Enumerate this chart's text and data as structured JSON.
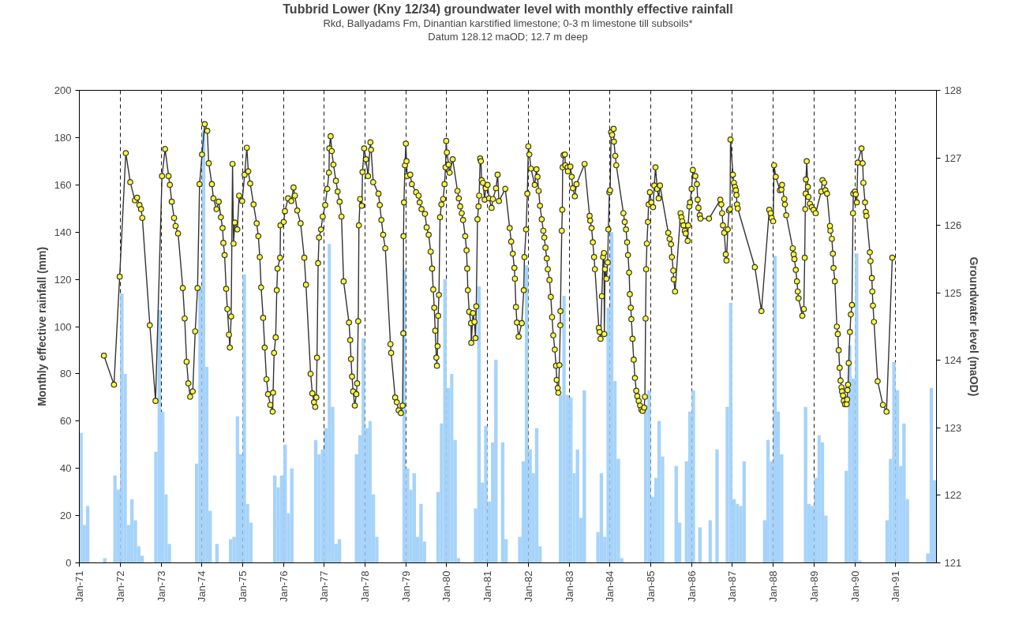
{
  "chart_data": {
    "type": "bar",
    "title": "Tubbrid Lower (Kny 12/34) groundwater level with monthly effective rainfall",
    "subtitle": "Rkd, Ballyadams Fm, Dinantian karstified limestone; 0-3 m limestone till subsoils*",
    "annotations": [
      "Datum 128.12 maOD; 12.7 m deep"
    ],
    "ylabel": "Monthly effective rainfall (mm)",
    "y2label": "Groundwater level (maOD)",
    "xlim": [
      "1971-01",
      "1992-01"
    ],
    "xticks": [
      {
        "value": "1971-01",
        "label": "Jan-71"
      },
      {
        "value": "1972-01",
        "label": "Jan-72"
      },
      {
        "value": "1973-01",
        "label": "Jan-73"
      },
      {
        "value": "1974-01",
        "label": "Jan-74"
      },
      {
        "value": "1975-01",
        "label": "Jan-75"
      },
      {
        "value": "1976-01",
        "label": "Jan-76"
      },
      {
        "value": "1977-01",
        "label": "Jan-77"
      },
      {
        "value": "1978-01",
        "label": "Jan-78"
      },
      {
        "value": "1979-01",
        "label": "Jan-79"
      },
      {
        "value": "1980-01",
        "label": "Jan-80"
      },
      {
        "value": "1981-01",
        "label": "Jan-81"
      },
      {
        "value": "1982-01",
        "label": "Jan-82"
      },
      {
        "value": "1983-01",
        "label": "Jan-83"
      },
      {
        "value": "1984-01",
        "label": "Jan-84"
      },
      {
        "value": "1985-01",
        "label": "Jan-85"
      },
      {
        "value": "1986-01",
        "label": "Jan-86"
      },
      {
        "value": "1987-01",
        "label": "Jan-87"
      },
      {
        "value": "1988-01",
        "label": "Jan-88"
      },
      {
        "value": "1989-01",
        "label": "Jan-89"
      },
      {
        "value": "1990-01",
        "label": "Jan-90"
      },
      {
        "value": "1991-01",
        "label": "Jan-91"
      }
    ],
    "ylim": [
      0,
      200
    ],
    "yticks": [
      0,
      20,
      40,
      60,
      80,
      100,
      120,
      140,
      160,
      180,
      200
    ],
    "y2lim": [
      121,
      128
    ],
    "y2ticks": [
      121,
      122,
      123,
      124,
      125,
      126,
      127,
      128
    ],
    "grid": "x",
    "marker": "circle",
    "line_style": "solid",
    "series": [
      {
        "color": "#a6d3fa",
        "x": [
          "1971-01",
          "1971-02",
          "1971-03",
          "1971-04",
          "1971-05",
          "1971-06",
          "1971-07",
          "1971-08",
          "1971-09",
          "1971-10",
          "1971-11",
          "1971-12",
          "1972-01",
          "1972-02",
          "1972-03",
          "1972-04",
          "1972-05",
          "1972-06",
          "1972-07",
          "1972-08",
          "1972-09",
          "1972-10",
          "1972-11",
          "1972-12",
          "1973-01",
          "1973-02",
          "1973-03",
          "1973-04",
          "1973-05",
          "1973-06",
          "1973-07",
          "1973-08",
          "1973-09",
          "1973-10",
          "1973-11",
          "1973-12",
          "1974-01",
          "1974-02",
          "1974-03",
          "1974-04",
          "1974-05",
          "1974-06",
          "1974-07",
          "1974-08",
          "1974-09",
          "1974-10",
          "1974-11",
          "1974-12",
          "1975-01",
          "1975-02",
          "1975-03",
          "1975-04",
          "1975-05",
          "1975-06",
          "1975-07",
          "1975-08",
          "1975-09",
          "1975-10",
          "1975-11",
          "1975-12",
          "1976-01",
          "1976-02",
          "1976-03",
          "1976-04",
          "1976-05",
          "1976-06",
          "1976-07",
          "1976-08",
          "1976-09",
          "1976-10",
          "1976-11",
          "1976-12",
          "1977-01",
          "1977-02",
          "1977-03",
          "1977-04",
          "1977-05",
          "1977-06",
          "1977-07",
          "1977-08",
          "1977-09",
          "1977-10",
          "1977-11",
          "1977-12",
          "1978-01",
          "1978-02",
          "1978-03",
          "1978-04",
          "1978-05",
          "1978-06",
          "1978-07",
          "1978-08",
          "1978-09",
          "1978-10",
          "1978-11",
          "1978-12",
          "1979-01",
          "1979-02",
          "1979-03",
          "1979-04",
          "1979-05",
          "1979-06",
          "1979-07",
          "1979-08",
          "1979-09",
          "1979-10",
          "1979-11",
          "1979-12",
          "1980-01",
          "1980-02",
          "1980-03",
          "1980-04",
          "1980-05",
          "1980-06",
          "1980-07",
          "1980-08",
          "1980-09",
          "1980-10",
          "1980-11",
          "1980-12",
          "1981-01",
          "1981-02",
          "1981-03",
          "1981-04",
          "1981-05",
          "1981-06",
          "1981-07",
          "1981-08",
          "1981-09",
          "1981-10",
          "1981-11",
          "1981-12",
          "1982-01",
          "1982-02",
          "1982-03",
          "1982-04",
          "1982-05",
          "1982-06",
          "1982-07",
          "1982-08",
          "1982-09",
          "1982-10",
          "1982-11",
          "1982-12",
          "1983-01",
          "1983-02",
          "1983-03",
          "1983-04",
          "1983-05",
          "1983-06",
          "1983-07",
          "1983-08",
          "1983-09",
          "1983-10",
          "1983-11",
          "1983-12",
          "1984-01",
          "1984-02",
          "1984-03",
          "1984-04",
          "1984-05",
          "1984-06",
          "1984-07",
          "1984-08",
          "1984-09",
          "1984-10",
          "1984-11",
          "1984-12",
          "1985-01",
          "1985-02",
          "1985-03",
          "1985-04",
          "1985-05",
          "1985-06",
          "1985-07",
          "1985-08",
          "1985-09",
          "1985-10",
          "1985-11",
          "1985-12",
          "1986-01",
          "1986-02",
          "1986-03",
          "1986-04",
          "1986-05",
          "1986-06",
          "1986-07",
          "1986-08",
          "1986-09",
          "1986-10",
          "1986-11",
          "1986-12",
          "1987-01",
          "1987-02",
          "1987-03",
          "1987-04",
          "1987-05",
          "1987-06",
          "1987-07",
          "1987-08",
          "1987-09",
          "1987-10",
          "1987-11",
          "1987-12",
          "1988-01",
          "1988-02",
          "1988-03",
          "1988-04",
          "1988-05",
          "1988-06",
          "1988-07",
          "1988-08",
          "1988-09",
          "1988-10",
          "1988-11",
          "1988-12",
          "1989-01",
          "1989-02",
          "1989-03",
          "1989-04",
          "1989-05",
          "1989-06",
          "1989-07",
          "1989-08",
          "1989-09",
          "1989-10",
          "1989-11",
          "1989-12",
          "1990-01",
          "1990-02",
          "1990-03",
          "1990-04",
          "1990-05",
          "1990-06",
          "1990-07",
          "1990-08",
          "1990-09",
          "1990-10",
          "1990-11",
          "1990-12",
          "1991-01",
          "1991-02",
          "1991-03",
          "1991-04",
          "1991-05",
          "1991-06",
          "1991-07",
          "1991-08",
          "1991-09",
          "1991-10",
          "1991-11",
          "1991-12"
        ],
        "values": [
          55,
          16,
          24,
          0,
          0,
          0,
          0,
          2,
          0,
          0,
          37,
          31,
          114,
          80,
          16,
          27,
          18,
          7,
          3,
          0,
          0,
          0,
          47,
          107,
          64,
          29,
          8,
          0,
          0,
          0,
          0,
          0,
          0,
          0,
          42,
          117,
          183,
          83,
          22,
          0,
          8,
          0,
          0,
          0,
          10,
          11,
          62,
          46,
          122,
          25,
          17,
          0,
          0,
          0,
          0,
          0,
          0,
          37,
          32,
          37,
          50,
          21,
          40,
          0,
          0,
          0,
          0,
          0,
          0,
          52,
          46,
          48,
          57,
          135,
          66,
          8,
          10,
          0,
          0,
          0,
          0,
          46,
          54,
          95,
          57,
          60,
          29,
          11,
          0,
          0,
          0,
          0,
          0,
          0,
          0,
          124,
          40,
          31,
          38,
          11,
          25,
          9,
          0,
          0,
          0,
          30,
          59,
          120,
          74,
          80,
          52,
          2,
          0,
          0,
          0,
          0,
          23,
          117,
          34,
          58,
          26,
          51,
          86,
          0,
          51,
          10,
          0,
          0,
          0,
          11,
          43,
          126,
          48,
          38,
          57,
          7,
          0,
          0,
          0,
          0,
          0,
          71,
          113,
          71,
          70,
          38,
          48,
          19,
          73,
          0,
          0,
          0,
          13,
          38,
          11,
          108,
          140,
          77,
          44,
          2,
          0,
          0,
          0,
          0,
          0,
          0,
          65,
          73,
          28,
          36,
          60,
          45,
          0,
          0,
          0,
          41,
          17,
          0,
          43,
          64,
          73,
          0,
          15,
          0,
          0,
          18,
          0,
          48,
          0,
          0,
          66,
          110,
          27,
          25,
          24,
          43,
          0,
          0,
          0,
          0,
          0,
          18,
          52,
          43,
          130,
          64,
          46,
          0,
          0,
          0,
          0,
          0,
          0,
          66,
          25,
          24,
          36,
          54,
          51,
          20,
          0,
          0,
          0,
          0,
          0,
          39,
          92,
          78,
          131,
          1,
          0,
          0,
          0,
          0,
          0,
          0,
          0,
          18,
          44,
          85,
          73,
          41,
          59,
          27,
          0,
          0,
          0,
          0,
          0,
          4,
          74,
          35
        ]
      },
      {
        "type": "line",
        "axis": "y2",
        "color": "#ffff33",
        "x": [
          "1971-08-09",
          "1971-11-07",
          "1971-12-28",
          "1972-02-21",
          "1972-04-01",
          "1972-05-12",
          "1972-06-01",
          "1972-06-22",
          "1972-07-06",
          "1972-07-18",
          "1972-09-23",
          "1972-11-13",
          "1973-01-10",
          "1973-02-07",
          "1973-03-10",
          "1973-03-21",
          "1973-04-07",
          "1973-04-28",
          "1973-05-12",
          "1973-06-03",
          "1973-07-15",
          "1973-08-01",
          "1973-08-18",
          "1973-09-03",
          "1973-09-19",
          "1973-10-12",
          "1973-11-03",
          "1973-11-24",
          "1973-12-12",
          "1974-01-03",
          "1974-01-27",
          "1974-02-19",
          "1974-03-04",
          "1974-04-01",
          "1974-04-15",
          "1974-05-13",
          "1974-06-01",
          "1974-06-21",
          "1974-07-06",
          "1974-07-13",
          "1974-07-24",
          "1974-08-07",
          "1974-08-18",
          "1974-09-01",
          "1974-09-09",
          "1974-09-21",
          "1974-10-03",
          "1974-10-12",
          "1974-10-24",
          "1974-11-15",
          "1974-12-01",
          "1974-12-28",
          "1975-01-19",
          "1975-02-08",
          "1975-02-21",
          "1975-03-10",
          "1975-04-09",
          "1975-05-07",
          "1975-05-22",
          "1975-06-04",
          "1975-06-16",
          "1975-07-04",
          "1975-07-18",
          "1975-08-03",
          "1975-08-17",
          "1975-09-06",
          "1975-09-27",
          "1975-10-01",
          "1975-10-10",
          "1975-10-24",
          "1975-11-03",
          "1975-11-10",
          "1975-12-03",
          "1975-12-06",
          "1976-01-04",
          "1976-01-15",
          "1976-02-12",
          "1976-03-12",
          "1976-04-01",
          "1976-04-13",
          "1976-05-04",
          "1976-06-03",
          "1976-07-06",
          "1976-07-21",
          "1976-09-01",
          "1976-09-16",
          "1976-10-01",
          "1976-10-12",
          "1976-10-22",
          "1976-10-28",
          "1976-11-07",
          "1976-11-15",
          "1976-12-03",
          "1976-12-18",
          "1977-01-09",
          "1977-01-28",
          "1977-02-12",
          "1977-02-15",
          "1977-02-27",
          "1977-03-09",
          "1977-03-24",
          "1977-04-15",
          "1977-05-01",
          "1977-05-18",
          "1977-06-04",
          "1977-06-23",
          "1977-08-10",
          "1977-08-21",
          "1977-08-28",
          "1977-09-06",
          "1977-09-16",
          "1977-10-01",
          "1977-10-15",
          "1977-10-22",
          "1977-11-01",
          "1977-11-07",
          "1977-11-18",
          "1977-12-03",
          "1977-12-09",
          "1977-12-24",
          "1978-01-09",
          "1978-01-27",
          "1978-02-18",
          "1978-02-24",
          "1978-03-15",
          "1978-05-01",
          "1978-05-13",
          "1978-05-27",
          "1978-06-12",
          "1978-07-01",
          "1978-08-16",
          "1978-08-22",
          "1978-09-27",
          "1978-10-12",
          "1978-10-28",
          "1978-11-18",
          "1978-12-03",
          "1978-12-09",
          "1978-12-11",
          "1978-12-15",
          "1978-12-24",
          "1979-01-01",
          "1979-01-07",
          "1979-01-13",
          "1979-02-09",
          "1979-02-24",
          "1979-04-03",
          "1979-04-25",
          "1979-05-05",
          "1979-05-21",
          "1979-06-21",
          "1979-07-06",
          "1979-07-24",
          "1979-08-11",
          "1979-08-24",
          "1979-09-03",
          "1979-09-12",
          "1979-09-21",
          "1979-10-01",
          "1979-10-06",
          "1979-10-12",
          "1979-10-17",
          "1979-10-24",
          "1979-11-03",
          "1979-11-15",
          "1979-12-01",
          "1979-12-13",
          "1979-12-22",
          "1979-12-28",
          "1980-01-03",
          "1980-01-19",
          "1980-01-28",
          "1980-02-24",
          "1980-04-07",
          "1980-04-19",
          "1980-05-01",
          "1980-05-15",
          "1980-05-27",
          "1980-06-15",
          "1980-06-27",
          "1980-07-03",
          "1980-07-09",
          "1980-07-21",
          "1980-08-06",
          "1980-08-08",
          "1980-08-24",
          "1980-09-06",
          "1980-09-15",
          "1980-09-22",
          "1980-10-03",
          "1980-10-12",
          "1980-10-18",
          "1980-10-27",
          "1980-11-03",
          "1980-11-09",
          "1980-11-21",
          "1980-12-06",
          "1980-12-15",
          "1981-01-01",
          "1981-01-15",
          "1981-02-06",
          "1981-02-18",
          "1981-03-18",
          "1981-04-01",
          "1981-04-13",
          "1981-06-09",
          "1981-07-18",
          "1981-08-01",
          "1981-08-15",
          "1981-08-29",
          "1981-09-03",
          "1981-09-12",
          "1981-09-21",
          "1981-10-06",
          "1981-11-03",
          "1981-11-21",
          "1981-11-27",
          "1981-12-12",
          "1981-12-23",
          "1982-01-01",
          "1982-01-10",
          "1982-01-25",
          "1982-02-27",
          "1982-03-15",
          "1982-03-24",
          "1982-04-03",
          "1982-04-15",
          "1982-05-01",
          "1982-05-15",
          "1982-05-24",
          "1982-06-03",
          "1982-06-15",
          "1982-06-24",
          "1982-07-09",
          "1982-07-21",
          "1982-08-01",
          "1982-08-12",
          "1982-08-26",
          "1982-09-06",
          "1982-09-12",
          "1982-09-21",
          "1982-09-27",
          "1982-10-06",
          "1982-10-14",
          "1982-10-15",
          "1982-10-27",
          "1982-11-01",
          "1982-11-04",
          "1982-11-12",
          "1982-11-24",
          "1982-11-28",
          "1982-12-18",
          "1982-12-21",
          "1983-01-12",
          "1983-01-24",
          "1983-02-03",
          "1983-02-21",
          "1983-03-08",
          "1983-05-19",
          "1983-07-03",
          "1983-07-09",
          "1983-07-21",
          "1983-08-01",
          "1983-08-12",
          "1983-08-20",
          "1983-09-24",
          "1983-10-01",
          "1983-10-09",
          "1983-10-21",
          "1983-11-01",
          "1983-11-09",
          "1983-11-12",
          "1983-11-18",
          "1983-12-01",
          "1983-12-12",
          "1983-12-18",
          "1983-12-27",
          "1984-01-03",
          "1984-01-12",
          "1984-01-21",
          "1984-02-03",
          "1984-02-06",
          "1984-02-18",
          "1984-02-27",
          "1984-05-01",
          "1984-05-12",
          "1984-05-24",
          "1984-06-03",
          "1984-06-11",
          "1984-06-21",
          "1984-06-27",
          "1984-07-06",
          "1984-07-11",
          "1984-07-21",
          "1984-08-01",
          "1984-08-12",
          "1984-08-24",
          "1984-09-02",
          "1984-09-15",
          "1984-09-27",
          "1984-10-09",
          "1984-10-20",
          "1984-11-03",
          "1984-11-09",
          "1984-11-15",
          "1984-11-20",
          "1984-11-27",
          "1984-12-06",
          "1984-12-12",
          "1984-12-24",
          "1985-01-06",
          "1985-01-21",
          "1985-02-01",
          "1985-02-12",
          "1985-02-27",
          "1985-03-12",
          "1985-03-24",
          "1985-06-06",
          "1985-06-18",
          "1985-07-01",
          "1985-07-09",
          "1985-07-21",
          "1985-07-25",
          "1985-08-06",
          "1985-09-24",
          "1985-10-02",
          "1985-10-09",
          "1985-10-21",
          "1985-11-01",
          "1985-11-09",
          "1985-11-27",
          "1985-12-01",
          "1985-12-12",
          "1985-12-18",
          "1986-01-01",
          "1986-01-12",
          "1986-02-03",
          "1986-02-18",
          "1986-02-24",
          "1986-03-03",
          "1986-03-15",
          "1986-03-22",
          "1986-06-06",
          "1986-09-15",
          "1986-09-24",
          "1986-10-01",
          "1986-10-09",
          "1986-10-20",
          "1986-11-03",
          "1986-11-09",
          "1986-11-21",
          "1986-12-01",
          "1986-12-11",
          "1986-12-15",
          "1987-01-06",
          "1987-01-15",
          "1987-01-24",
          "1987-02-01",
          "1987-02-06",
          "1987-02-11",
          "1987-02-18",
          "1987-07-21",
          "1987-09-18",
          "1987-11-27",
          "1987-12-09",
          "1987-12-18",
          "1988-01-01",
          "1988-01-09",
          "1988-01-24",
          "1988-03-01",
          "1988-03-15",
          "1988-03-21",
          "1988-04-09",
          "1988-04-15",
          "1988-04-27",
          "1988-06-24",
          "1988-07-02",
          "1988-07-09",
          "1988-07-21",
          "1988-08-01",
          "1988-08-08",
          "1988-08-15",
          "1988-09-18",
          "1988-10-01",
          "1988-10-09",
          "1988-10-14",
          "1988-10-18",
          "1988-10-20",
          "1988-10-27",
          "1988-11-06",
          "1988-11-11",
          "1988-11-24",
          "1988-12-11",
          "1988-12-27",
          "1989-01-15",
          "1989-03-06",
          "1989-03-17",
          "1989-04-02",
          "1989-04-12",
          "1989-04-27",
          "1989-05-23",
          "1989-05-27",
          "1989-06-09",
          "1989-06-18",
          "1989-06-24",
          "1989-07-06",
          "1989-07-24",
          "1989-08-01",
          "1989-08-09",
          "1989-08-18",
          "1989-08-26",
          "1989-09-03",
          "1989-09-08",
          "1989-09-17",
          "1989-09-24",
          "1989-10-05",
          "1989-10-20",
          "1989-10-24",
          "1989-10-27",
          "1989-11-01",
          "1989-11-07",
          "1989-11-18",
          "1989-11-26",
          "1989-12-06",
          "1989-12-15",
          "1989-12-18",
          "1990-01-02",
          "1990-01-09",
          "1990-01-18",
          "1990-01-27",
          "1990-03-01",
          "1990-03-12",
          "1990-03-18",
          "1990-04-02",
          "1990-04-09",
          "1990-04-15",
          "1990-05-15",
          "1990-05-21",
          "1990-06-02",
          "1990-06-06",
          "1990-06-12",
          "1990-06-21",
          "1990-07-24",
          "1990-09-09",
          "1990-10-11",
          "1990-12-02"
        ],
        "values": [
          124.07,
          123.64,
          125.24,
          127.07,
          126.64,
          126.37,
          126.41,
          126.3,
          126.24,
          126.11,
          124.52,
          123.4,
          126.73,
          127.13,
          126.73,
          126.6,
          126.35,
          126.11,
          125.99,
          125.88,
          125.07,
          124.62,
          123.98,
          123.66,
          123.46,
          123.54,
          124.43,
          125.07,
          126.61,
          127.05,
          127.5,
          127.4,
          126.92,
          126.61,
          126.4,
          126.24,
          126.35,
          126.12,
          125.96,
          125.74,
          125.56,
          125.06,
          124.76,
          124.38,
          124.19,
          124.65,
          126.91,
          125.73,
          126.04,
          125.94,
          126.44,
          126.36,
          126.75,
          127.15,
          126.8,
          126.62,
          126.31,
          126.03,
          125.84,
          125.53,
          125.08,
          124.63,
          124.19,
          123.72,
          123.5,
          123.34,
          123.24,
          123.52,
          124.11,
          124.34,
          125.04,
          125.36,
          125.52,
          126.0,
          126.05,
          126.21,
          126.4,
          126.36,
          126.56,
          126.44,
          126.22,
          126.03,
          125.52,
          125.12,
          123.8,
          123.51,
          123.38,
          123.31,
          123.45,
          124.04,
          125.44,
          125.82,
          125.94,
          126.13,
          126.3,
          126.54,
          126.78,
          127.14,
          127.32,
          127.1,
          126.9,
          126.66,
          126.5,
          126.35,
          126.13,
          125.17,
          124.56,
          124.3,
          124.02,
          123.76,
          123.54,
          123.33,
          123.5,
          123.66,
          124.58,
          126.0,
          126.39,
          126.29,
          126.79,
          127.14,
          126.98,
          126.73,
          127.23,
          127.12,
          126.64,
          126.47,
          126.3,
          126.08,
          125.86,
          125.66,
          124.24,
          124.11,
          123.45,
          123.38,
          123.26,
          123.22,
          123.33,
          124.4,
          125.84,
          126.34,
          126.89,
          127.21,
          126.95,
          126.73,
          126.75,
          126.61,
          126.49,
          126.44,
          126.34,
          126.24,
          126.17,
          125.97,
          125.86,
          125.61,
          125.36,
          125.05,
          124.78,
          124.44,
          124.04,
          123.92,
          124.21,
          124.66,
          124.97,
          126.12,
          126.31,
          126.39,
          126.61,
          126.86,
          127.25,
          127.08,
          126.9,
          126.78,
          126.98,
          126.51,
          126.4,
          126.28,
          126.18,
          126.08,
          125.84,
          125.63,
          125.36,
          125.04,
          124.72,
          124.55,
          124.26,
          124.7,
          124.57,
          124.33,
          124.8,
          126.09,
          126.28,
          126.44,
          126.99,
          126.95,
          126.67,
          126.63,
          126.38,
          126.55,
          126.6,
          126.4,
          126.26,
          126.39,
          126.55,
          126.75,
          126.36,
          126.54,
          125.96,
          125.76,
          125.58,
          125.37,
          125.21,
          124.79,
          124.56,
          124.35,
          124.55,
          125.04,
          125.53,
          125.94,
          126.47,
          127.17,
          127.05,
          126.84,
          126.6,
          126.83,
          126.72,
          126.51,
          126.29,
          126.09,
          125.92,
          125.82,
          125.67,
          125.51,
          125.35,
          125.19,
          124.94,
          124.64,
          124.37,
          124.16,
          123.92,
          123.71,
          123.59,
          123.52,
          123.93,
          124.52,
          124.73,
          125.92,
          126.23,
          126.86,
          127.04,
          127.05,
          126.89,
          126.86,
          126.8,
          126.87,
          126.72,
          126.55,
          126.43,
          126.61,
          126.91,
          126.14,
          126.07,
          125.96,
          125.75,
          125.53,
          125.35,
          124.48,
          124.42,
          124.32,
          124.95,
          125.53,
          125.59,
          124.39,
          125.35,
          125.21,
          125.45,
          125.94,
          126.49,
          126.52,
          127.38,
          127.34,
          127.43,
          127.24,
          127.03,
          126.89,
          126.18,
          126.05,
          125.94,
          125.75,
          125.56,
          125.3,
          124.98,
          124.78,
          124.61,
          124.32,
          124.01,
          123.74,
          123.55,
          123.47,
          123.4,
          123.33,
          123.27,
          123.25,
          123.3,
          123.46,
          124.62,
          125.35,
          125.73,
          126.05,
          126.31,
          126.49,
          126.34,
          126.27,
          126.59,
          126.86,
          126.54,
          126.4,
          126.59,
          125.89,
          125.8,
          125.72,
          125.53,
          125.33,
          125.2,
          125.02,
          126.18,
          126.12,
          126.06,
          126.0,
          125.92,
          125.88,
          125.77,
          126.0,
          126.28,
          126.34,
          126.54,
          126.82,
          126.73,
          126.61,
          126.38,
          126.26,
          126.15,
          126.1,
          126.1,
          126.38,
          126.31,
          126.18,
          126.0,
          125.89,
          125.57,
          125.48,
          125.94,
          126.22,
          126.24,
          127.27,
          126.75,
          126.63,
          126.57,
          126.52,
          126.45,
          126.31,
          126.25,
          125.38,
          124.73,
          126.23,
          126.18,
          126.11,
          126.06,
          126.89,
          126.72,
          126.52,
          126.53,
          126.6,
          126.39,
          126.31,
          126.15,
          125.66,
          125.57,
          125.5,
          125.34,
          125.17,
          125.02,
          124.92,
          124.66,
          124.76,
          125.52,
          126.24,
          126.47,
          126.68,
          126.95,
          126.57,
          126.42,
          126.32,
          126.27,
          126.23,
          126.18,
          126.5,
          126.67,
          126.63,
          126.52,
          126.47,
          125.99,
          125.92,
          125.8,
          125.58,
          125.37,
          125.17,
          124.5,
          124.39,
          124.15,
          123.89,
          123.7,
          123.6,
          123.54,
          123.48,
          123.4,
          123.35,
          123.35,
          123.42,
          123.56,
          123.64,
          123.96,
          124.42,
          124.68,
          124.82,
          126.18,
          126.47,
          126.5,
          126.46,
          126.34,
          126.93,
          127.14,
          126.92,
          126.63,
          126.34,
          126.2,
          126.14,
          125.6,
          125.47,
          125.22,
          125.02,
          124.81,
          124.57,
          123.69,
          123.34,
          123.24,
          125.52
        ]
      }
    ]
  }
}
